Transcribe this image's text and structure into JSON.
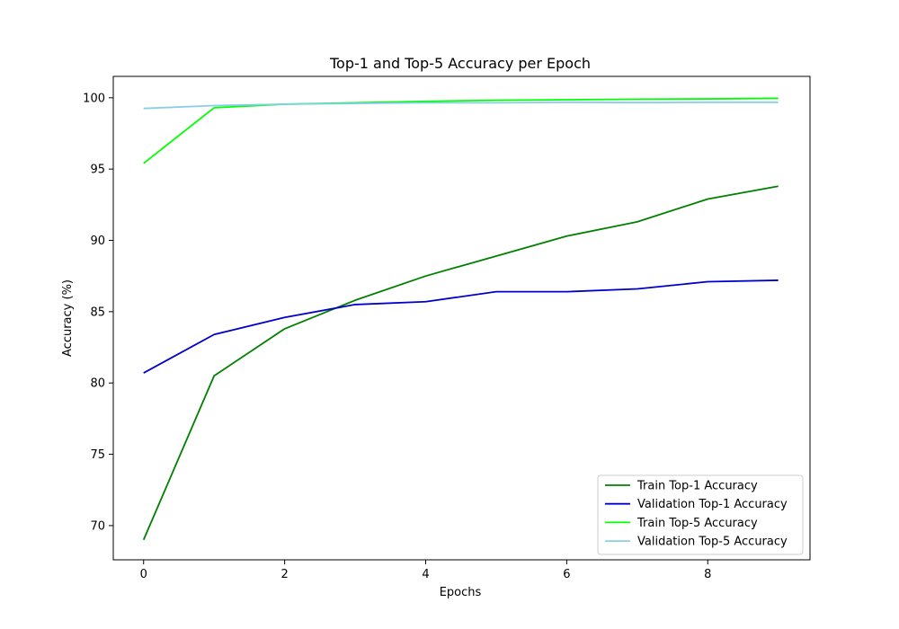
{
  "chart_data": {
    "type": "line",
    "title": "Top-1 and Top-5 Accuracy per Epoch",
    "xlabel": "Epochs",
    "ylabel": "Accuracy (%)",
    "x": [
      0,
      1,
      2,
      3,
      4,
      5,
      6,
      7,
      8,
      9
    ],
    "xticks": [
      "0",
      "2",
      "4",
      "6",
      "8"
    ],
    "xtick_values": [
      0,
      2,
      4,
      6,
      8
    ],
    "yticks": [
      "70",
      "75",
      "80",
      "85",
      "90",
      "95",
      "100"
    ],
    "ytick_values": [
      70,
      75,
      80,
      85,
      90,
      95,
      100
    ],
    "xlim": [
      -0.43,
      9.45
    ],
    "ylim": [
      67.6,
      101.5
    ],
    "grid": false,
    "legend_position": "lower-right",
    "series": [
      {
        "name": "Train Top-1 Accuracy",
        "color": "#008000",
        "values": [
          69.0,
          80.5,
          83.8,
          85.8,
          87.5,
          88.9,
          90.3,
          91.3,
          92.9,
          93.8
        ]
      },
      {
        "name": "Validation Top-1 Accuracy",
        "color": "#0000cd",
        "values": [
          80.7,
          83.4,
          84.6,
          85.5,
          85.7,
          86.4,
          86.4,
          86.6,
          87.1,
          87.2
        ]
      },
      {
        "name": "Train Top-5 Accuracy",
        "color": "#00ff00",
        "values": [
          95.4,
          99.3,
          99.55,
          99.65,
          99.75,
          99.82,
          99.86,
          99.9,
          99.92,
          99.96
        ]
      },
      {
        "name": "Validation Top-5 Accuracy",
        "color": "#87ceeb",
        "values": [
          99.25,
          99.45,
          99.55,
          99.6,
          99.65,
          99.65,
          99.68,
          99.66,
          99.68,
          99.68
        ]
      }
    ]
  }
}
